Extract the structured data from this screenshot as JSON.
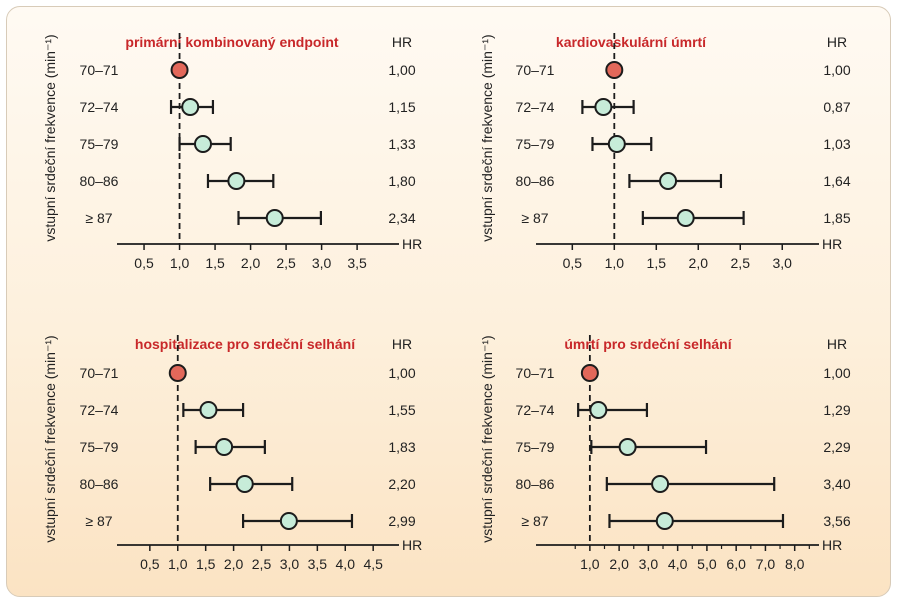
{
  "colors": {
    "title": "#c8282a",
    "reference_fill": "#e2685a",
    "point_fill": "#c7ecd9",
    "stroke": "#1c1c1c"
  },
  "chart_data": [
    {
      "type": "forest",
      "title": "primární kombinovaný endpoint",
      "ylabel": "vstupní srdeční frekvence (min⁻¹)",
      "xlabel": "HR",
      "hr_header": "HR",
      "xlim": [
        0.26,
        3.78
      ],
      "ticks": [
        0.5,
        1.0,
        1.5,
        2.0,
        2.5,
        3.0,
        3.5
      ],
      "tick_labels": [
        "0,5",
        "1,0",
        "1,5",
        "2,0",
        "2,5",
        "3,0",
        "3,5"
      ],
      "minor_ticks": [],
      "reference_line": 1.0,
      "rows": [
        {
          "label": "70–71",
          "hr": 1.0,
          "hr_text": "1,00",
          "ci": null,
          "reference": true
        },
        {
          "label": "72–74",
          "hr": 1.15,
          "hr_text": "1,15",
          "ci": [
            0.88,
            1.47
          ]
        },
        {
          "label": "75–79",
          "hr": 1.33,
          "hr_text": "1,33",
          "ci": [
            1.0,
            1.72
          ]
        },
        {
          "label": "80–86",
          "hr": 1.8,
          "hr_text": "1,80",
          "ci": [
            1.4,
            2.32
          ]
        },
        {
          "label": "≥ 87",
          "hr": 2.34,
          "hr_text": "2,34",
          "ci": [
            1.83,
            2.99
          ]
        }
      ]
    },
    {
      "type": "forest",
      "title": "kardiovaskulární úmrtí",
      "ylabel": "vstupní srdeční frekvence (min⁻¹)",
      "xlabel": "HR",
      "hr_header": "HR",
      "xlim": [
        0.27,
        3.14
      ],
      "ticks": [
        0.5,
        1.0,
        1.5,
        2.0,
        2.5,
        3.0
      ],
      "tick_labels": [
        "0,5",
        "1,0",
        "1,5",
        "2,0",
        "2,5",
        "3,0"
      ],
      "minor_ticks": [],
      "reference_line": 1.0,
      "rows": [
        {
          "label": "70–71",
          "hr": 1.0,
          "hr_text": "1,00",
          "ci": null,
          "reference": true
        },
        {
          "label": "72–74",
          "hr": 0.87,
          "hr_text": "0,87",
          "ci": [
            0.62,
            1.23
          ]
        },
        {
          "label": "75–79",
          "hr": 1.03,
          "hr_text": "1,03",
          "ci": [
            0.74,
            1.44
          ]
        },
        {
          "label": "80–86",
          "hr": 1.64,
          "hr_text": "1,64",
          "ci": [
            1.18,
            2.27
          ]
        },
        {
          "label": "≥ 87",
          "hr": 1.85,
          "hr_text": "1,85",
          "ci": [
            1.34,
            2.54
          ]
        }
      ]
    },
    {
      "type": "forest",
      "title": "hospitalizace pro srdeční selhání",
      "ylabel": "vstupní srdeční frekvence (min⁻¹)",
      "xlabel": "HR",
      "hr_header": "HR",
      "xlim": [
        0.27,
        4.64
      ],
      "ticks": [
        0.5,
        1.0,
        1.5,
        2.0,
        2.5,
        3.0,
        3.5,
        4.0,
        4.5
      ],
      "tick_labels": [
        "0,5",
        "1,0",
        "1,5",
        "2,0",
        "2,5",
        "3,0",
        "3,5",
        "4,0",
        "4,5"
      ],
      "minor_ticks": [],
      "reference_line": 1.0,
      "rows": [
        {
          "label": "70–71",
          "hr": 1.0,
          "hr_text": "1,00",
          "ci": null,
          "reference": true
        },
        {
          "label": "72–74",
          "hr": 1.55,
          "hr_text": "1,55",
          "ci": [
            1.1,
            2.17
          ]
        },
        {
          "label": "75–79",
          "hr": 1.83,
          "hr_text": "1,83",
          "ci": [
            1.32,
            2.56
          ]
        },
        {
          "label": "80–86",
          "hr": 2.2,
          "hr_text": "2,20",
          "ci": [
            1.58,
            3.05
          ]
        },
        {
          "label": "≥ 87",
          "hr": 2.99,
          "hr_text": "2,99",
          "ci": [
            2.17,
            4.12
          ]
        }
      ]
    },
    {
      "type": "forest",
      "title": "úmrtí pro srdeční selhání",
      "ylabel": "vstupní srdeční frekvence (min⁻¹)",
      "xlabel": "HR",
      "hr_header": "HR",
      "xlim": [
        -0.26,
        8.66
      ],
      "ticks": [
        1.0,
        2.0,
        3.0,
        4.0,
        5.0,
        6.0,
        7.0,
        8.0
      ],
      "tick_labels": [
        "1,0",
        "2,0",
        "3,0",
        "4,0",
        "5,0",
        "6,0",
        "7,0",
        "8,0"
      ],
      "minor_ticks": [
        0.5,
        1.5,
        2.5,
        3.5,
        4.5,
        5.5,
        6.5,
        7.5,
        8.5
      ],
      "reference_line": 1.0,
      "rows": [
        {
          "label": "70–71",
          "hr": 1.0,
          "hr_text": "1,00",
          "ci": null,
          "reference": true
        },
        {
          "label": "72–74",
          "hr": 1.29,
          "hr_text": "1,29",
          "ci": [
            0.6,
            2.95
          ]
        },
        {
          "label": "75–79",
          "hr": 2.29,
          "hr_text": "2,29",
          "ci": [
            1.05,
            4.97
          ]
        },
        {
          "label": "80–86",
          "hr": 3.4,
          "hr_text": "3,40",
          "ci": [
            1.58,
            7.3
          ]
        },
        {
          "label": "≥ 87",
          "hr": 3.56,
          "hr_text": "3,56",
          "ci": [
            1.67,
            7.6
          ]
        }
      ]
    }
  ]
}
